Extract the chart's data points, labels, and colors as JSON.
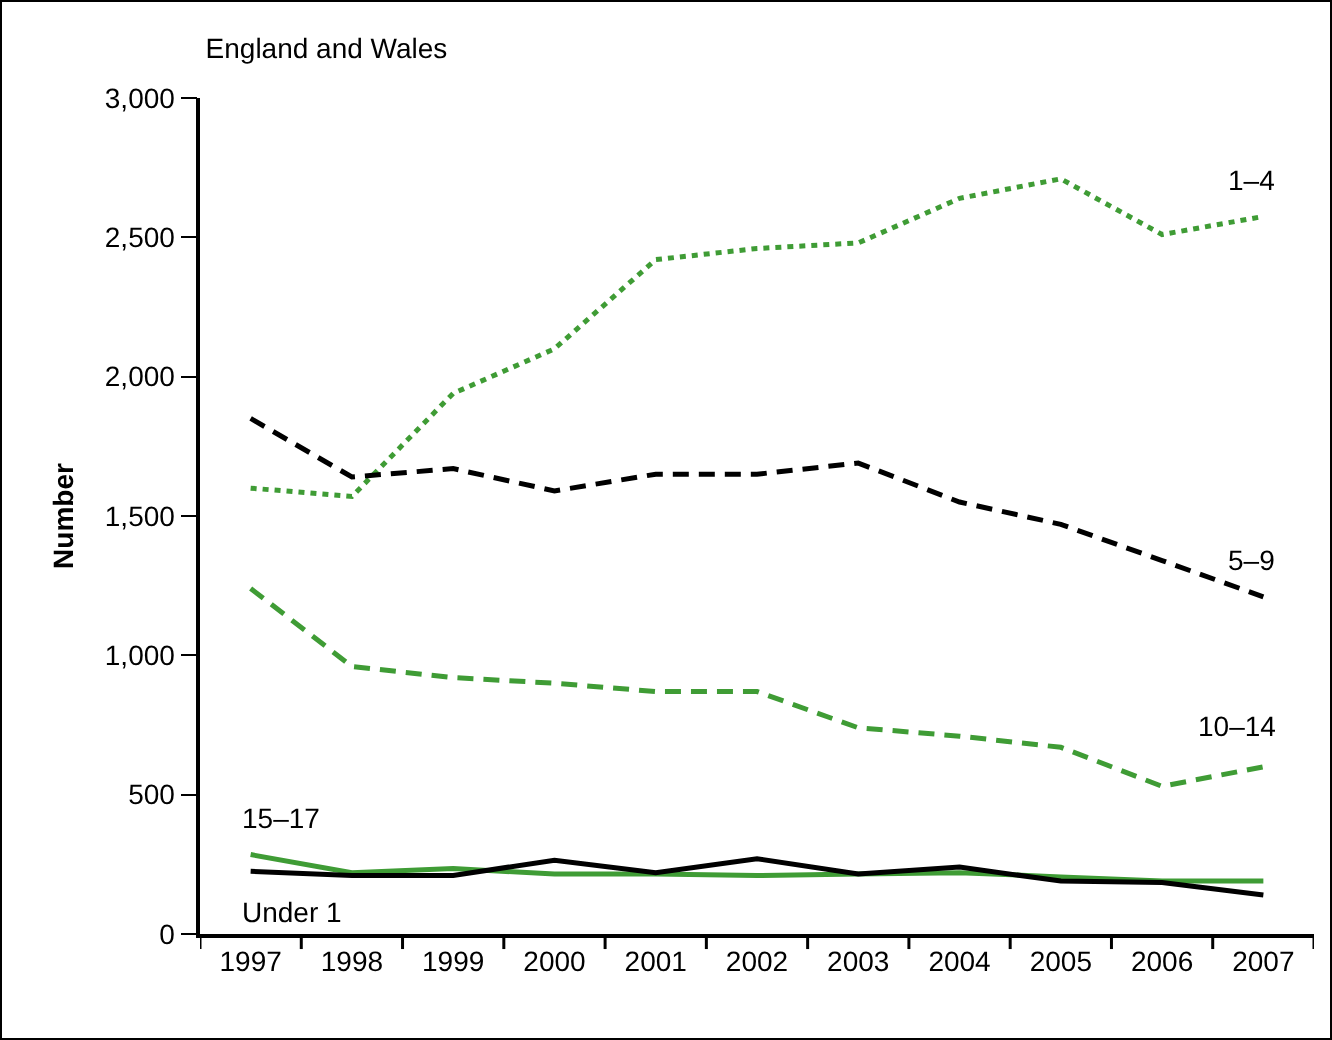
{
  "chart_data": {
    "type": "line",
    "title": "England and Wales",
    "ylabel": "Number",
    "categories": [
      "1997",
      "1998",
      "1999",
      "2000",
      "2001",
      "2002",
      "2003",
      "2004",
      "2005",
      "2006",
      "2007"
    ],
    "series": [
      {
        "name": "1–4",
        "color": "#3f9c35",
        "line_style": "dotted",
        "values": [
          1600,
          1570,
          1940,
          2100,
          2420,
          2460,
          2480,
          2640,
          2710,
          2510,
          2575
        ]
      },
      {
        "name": "5–9",
        "color": "#000000",
        "line_style": "dashed",
        "values": [
          1850,
          1640,
          1670,
          1590,
          1650,
          1650,
          1690,
          1550,
          1470,
          1340,
          1210
        ]
      },
      {
        "name": "10–14",
        "color": "#3f9c35",
        "line_style": "dashed",
        "values": [
          1240,
          960,
          920,
          900,
          870,
          870,
          740,
          710,
          670,
          530,
          600
        ]
      },
      {
        "name": "15–17",
        "color": "#3f9c35",
        "line_style": "solid",
        "values": [
          285,
          220,
          235,
          215,
          215,
          210,
          215,
          220,
          205,
          190,
          190
        ]
      },
      {
        "name": "Under 1",
        "color": "#000000",
        "line_style": "solid",
        "values": [
          225,
          210,
          210,
          265,
          220,
          270,
          215,
          240,
          190,
          185,
          140
        ]
      }
    ],
    "ylim": [
      0,
      3000
    ],
    "yticks": [
      0,
      500,
      {
        "value": 1000,
        "label": "1,000"
      },
      {
        "value": 1500,
        "label": "1,500"
      },
      {
        "value": 2000,
        "label": "2,000"
      },
      {
        "value": 2500,
        "label": "2,500"
      },
      {
        "value": 3000,
        "label": "3,000"
      }
    ],
    "grid": false,
    "legend": false,
    "marker": "none"
  }
}
